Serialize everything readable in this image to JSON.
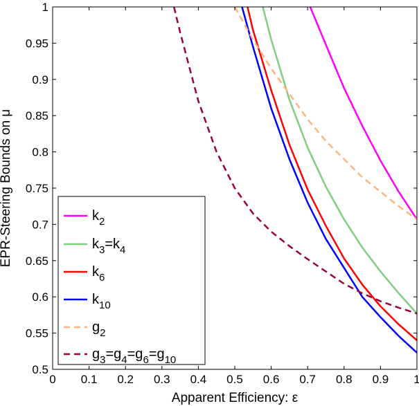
{
  "chart_data": {
    "type": "line",
    "title": "",
    "xlabel": "Apparent Efficiency: ε",
    "ylabel": "EPR-Steering Bounds on  μ",
    "xlim": [
      0,
      1
    ],
    "ylim": [
      0.5,
      1
    ],
    "xticks": [
      0,
      0.1,
      0.2,
      0.3,
      0.4,
      0.5,
      0.6,
      0.7,
      0.8,
      0.9,
      1
    ],
    "xtick_labels": [
      "0",
      "0.1",
      "0.2",
      "0.3",
      "0.4",
      "0.5",
      "0.6",
      "0.7",
      "0.8",
      "0.9",
      "1"
    ],
    "yticks": [
      0.5,
      0.55,
      0.6,
      0.65,
      0.7,
      0.75,
      0.8,
      0.85,
      0.9,
      0.95,
      1
    ],
    "ytick_labels": [
      "0.5",
      "0.55",
      "0.6",
      "0.65",
      "0.7",
      "0.75",
      "0.8",
      "0.85",
      "0.9",
      "0.95",
      "1"
    ],
    "grid": false,
    "legend_position": "bottom-left",
    "series": [
      {
        "name": "k2",
        "label_main": "k",
        "label_sub": "2",
        "color": "#ff00ff",
        "dash": "solid",
        "x": [
          0.707,
          0.75,
          0.8,
          0.85,
          0.9,
          0.95,
          1.0
        ],
        "y": [
          1.0,
          0.948,
          0.888,
          0.836,
          0.788,
          0.745,
          0.707
        ]
      },
      {
        "name": "k3=k4",
        "label_main": "k",
        "label_sub": "3",
        "label_mid": "=k",
        "label_sub2": "4",
        "color": "#7fce7f",
        "dash": "solid",
        "x": [
          0.577,
          0.6,
          0.65,
          0.7,
          0.75,
          0.8,
          0.85,
          0.9,
          0.95,
          1.0
        ],
        "y": [
          1.0,
          0.955,
          0.872,
          0.806,
          0.752,
          0.707,
          0.668,
          0.635,
          0.605,
          0.577
        ]
      },
      {
        "name": "k6",
        "label_main": "k",
        "label_sub": "6",
        "color": "#ff0000",
        "dash": "solid",
        "x": [
          0.535,
          0.55,
          0.6,
          0.65,
          0.7,
          0.75,
          0.8,
          0.85,
          0.9,
          0.95,
          1.0
        ],
        "y": [
          1.0,
          0.968,
          0.885,
          0.81,
          0.748,
          0.698,
          0.653,
          0.617,
          0.587,
          0.562,
          0.54
        ]
      },
      {
        "name": "k10",
        "label_main": "k",
        "label_sub": "10",
        "color": "#0000ff",
        "dash": "solid",
        "x": [
          0.52,
          0.55,
          0.6,
          0.65,
          0.7,
          0.75,
          0.8,
          0.85,
          0.9,
          0.95,
          1.0
        ],
        "y": [
          1.0,
          0.945,
          0.86,
          0.79,
          0.73,
          0.68,
          0.64,
          0.6,
          0.572,
          0.546,
          0.523
        ]
      },
      {
        "name": "g2",
        "label_main": "g",
        "label_sub": "2",
        "color": "#ffb37f",
        "dash": "dashed",
        "x": [
          0.5,
          0.55,
          0.6,
          0.65,
          0.7,
          0.75,
          0.8,
          0.85,
          0.9,
          0.95,
          1.0
        ],
        "y": [
          1.0,
          0.955,
          0.915,
          0.88,
          0.845,
          0.815,
          0.79,
          0.765,
          0.745,
          0.725,
          0.707
        ]
      },
      {
        "name": "g3=g4=g6=g10",
        "label_main": "g",
        "label_sub": "3",
        "label_mid": "=g",
        "label_sub2": "4",
        "label_mid2": "=g",
        "label_sub3": "6",
        "label_mid3": "=g",
        "label_sub4": "10",
        "color": "#990044",
        "dash": "dashed",
        "x": [
          0.333,
          0.35,
          0.4,
          0.45,
          0.5,
          0.55,
          0.6,
          0.65,
          0.7,
          0.75,
          0.8,
          0.85,
          0.9,
          0.95,
          1.0
        ],
        "y": [
          1.0,
          0.965,
          0.87,
          0.8,
          0.75,
          0.715,
          0.69,
          0.67,
          0.652,
          0.635,
          0.618,
          0.605,
          0.594,
          0.585,
          0.577
        ]
      }
    ]
  }
}
